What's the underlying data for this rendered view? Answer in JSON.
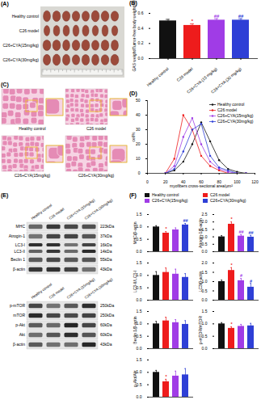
{
  "panel_A": {
    "label": "(A)",
    "rows": [
      "Healthy control",
      "C26 model",
      "C26+CYA(15mg/kg)",
      "C26+CYA(30mg/kg)"
    ]
  },
  "panel_C": {
    "label": "(C)",
    "images": [
      "Healthy control",
      "C26 model",
      "C26+CYA(15mg/kg)",
      "C26+CYA(30mg/kg)"
    ]
  },
  "panel_E": {
    "label": "(E)",
    "columns": [
      "Healthy control",
      "C26 model",
      "C26+CYA (15mg/kg)",
      "C26+CYA (30mg/kg)"
    ],
    "blots": [
      [
        {
          "protein": [
            "MHC"
          ],
          "size": [
            "223kDa"
          ]
        },
        {
          "protein": [
            "Atrogin-1"
          ],
          "size": [
            "37kDa"
          ]
        },
        {
          "protein": [
            "LC3-I",
            "LC3-II"
          ],
          "size": [
            "16kDa",
            "14kDa"
          ]
        },
        {
          "protein": [
            "Beclin 1"
          ],
          "size": [
            "55kDa"
          ]
        },
        {
          "protein": [
            "β-actin"
          ],
          "size": [
            "43kDa"
          ]
        }
      ],
      [
        {
          "protein": [
            "p-mTOR"
          ],
          "size": [
            "250kDa"
          ]
        },
        {
          "protein": [
            "mTOR"
          ],
          "size": [
            "250kDa"
          ]
        },
        {
          "protein": [
            "p-Akt"
          ],
          "size": [
            "60kDa"
          ]
        },
        {
          "protein": [
            "Akt"
          ],
          "size": [
            "60kDa"
          ]
        },
        {
          "protein": [
            "β-actin"
          ],
          "size": [
            "43kDa"
          ]
        }
      ]
    ]
  },
  "panel_F": {
    "label": "(F)",
    "legend": {
      "names": [
        "Healthy control",
        "C26 model",
        "C26+CYA(15mg/kg)",
        "C26+CYA(30mg/kg)"
      ],
      "colors": [
        "#111111",
        "#ee1c1c",
        "#a03ce6",
        "#2e3fd6"
      ]
    }
  },
  "chart_data": [
    {
      "type": "bar",
      "title": "(B)",
      "y_label": "GAS weight/Tumor-free body weight(%)",
      "categories": [
        "Healthy control",
        "C26 model",
        "C26+CYA (15 mg/kg)",
        "C26+CYA (30 mg/kg)"
      ],
      "values": [
        0.5,
        0.44,
        0.51,
        0.51
      ],
      "errors": [
        0.02,
        0.02,
        0.02,
        0.02
      ],
      "significance": [
        null,
        "*",
        "##",
        "##"
      ],
      "colors": [
        "#111111",
        "#ee1c1c",
        "#a03ce6",
        "#2e3fd6"
      ],
      "ylim": [
        0,
        0.6
      ],
      "yticks": [
        {
          "value": 0,
          "label": "0.0"
        },
        0.2,
        0.4,
        0.6
      ]
    },
    {
      "type": "line",
      "title": "(D)",
      "x_label": "myofibers cross-sectional area/μm²",
      "y_label": "cell%",
      "x": [
        20,
        30,
        40,
        50,
        60,
        70,
        80,
        90,
        100,
        110
      ],
      "series": [
        {
          "name": "Healthy control",
          "color": "#111111",
          "values": [
            0,
            2,
            8,
            20,
            35,
            22,
            9,
            3,
            1,
            0
          ]
        },
        {
          "name": "C26 model",
          "color": "#ee1c1c",
          "values": [
            0,
            10,
            40,
            30,
            12,
            5,
            2,
            0,
            0,
            0
          ]
        },
        {
          "name": "C26+CYA(15mg/kg)",
          "color": "#a03ce6",
          "values": [
            0,
            5,
            25,
            38,
            20,
            8,
            3,
            1,
            0,
            0
          ]
        },
        {
          "name": "C26+CYA(30mg/kg)",
          "color": "#2e3fd6",
          "values": [
            0,
            3,
            15,
            30,
            34,
            12,
            4,
            2,
            0,
            0
          ]
        }
      ],
      "marker": "circle",
      "legend": "top-right",
      "xlim": [
        0,
        120
      ],
      "xticks": [
        0,
        20,
        40,
        60,
        80,
        100,
        120
      ],
      "ylim": [
        0,
        50
      ],
      "yticks": [
        0,
        10,
        20,
        30,
        40,
        50
      ]
    },
    {
      "type": "bar",
      "y_label": "MHC/β-actin",
      "tick_labels": "y",
      "categories": [
        "Healthy control",
        "C26 model",
        "C26+CYA(15mg/kg)",
        "C26+CYA(30mg/kg)"
      ],
      "values": [
        1.0,
        0.75,
        0.88,
        1.08
      ],
      "errors": [
        0.05,
        0.06,
        0.08,
        0.06
      ],
      "significance": [
        null,
        "*",
        null,
        "##"
      ],
      "colors": [
        "#111111",
        "#ee1c1c",
        "#a03ce6",
        "#2e3fd6"
      ],
      "ylim": [
        0,
        1.5
      ],
      "yticks": [
        {
          "value": 0,
          "label": "0.0"
        },
        0.5,
        {
          "value": 1,
          "label": "1.0"
        },
        1.5
      ]
    },
    {
      "type": "bar",
      "y_label": "Atrogin-1/β-actin",
      "tick_labels": "y",
      "categories": [
        "Healthy control",
        "C26 model",
        "C26+CYA(15mg/kg)",
        "C26+CYA(30mg/kg)"
      ],
      "values": [
        1.0,
        1.85,
        1.05,
        0.98
      ],
      "errors": [
        0.08,
        0.15,
        0.1,
        0.12
      ],
      "significance": [
        null,
        "*",
        "##",
        "##"
      ],
      "colors": [
        "#111111",
        "#ee1c1c",
        "#a03ce6",
        "#2e3fd6"
      ],
      "ylim": [
        0,
        2.5
      ],
      "yticks": [
        {
          "value": 0,
          "label": "0.0"
        },
        0.5,
        {
          "value": 1,
          "label": "1.0"
        },
        1.5,
        {
          "value": 2,
          "label": "2.0"
        },
        2.5
      ]
    },
    {
      "type": "bar",
      "y_label": "LC3-II/LC3-I",
      "tick_labels": "y",
      "categories": [
        "Healthy control",
        "C26 model",
        "C26+CYA(15mg/kg)",
        "C26+CYA(30mg/kg)"
      ],
      "values": [
        1.0,
        1.12,
        1.05,
        0.92
      ],
      "errors": [
        0.15,
        0.18,
        0.2,
        0.15
      ],
      "colors": [
        "#111111",
        "#ee1c1c",
        "#a03ce6",
        "#2e3fd6"
      ],
      "ylim": [
        0,
        1.5
      ],
      "yticks": [
        {
          "value": 0,
          "label": "0.0"
        },
        0.5,
        {
          "value": 1,
          "label": "1.0"
        },
        1.5
      ]
    },
    {
      "type": "bar",
      "y_label": "LC3/β-actin",
      "tick_labels": "y",
      "categories": [
        "Healthy control",
        "C26 model",
        "C26+CYA(15mg/kg)",
        "C26+CYA(30mg/kg)"
      ],
      "values": [
        1.0,
        1.6,
        1.05,
        0.7
      ],
      "errors": [
        0.08,
        0.15,
        0.12,
        0.2
      ],
      "significance": [
        null,
        "*",
        "#",
        "#"
      ],
      "colors": [
        "#111111",
        "#ee1c1c",
        "#a03ce6",
        "#2e3fd6"
      ],
      "ylim": [
        0,
        2
      ],
      "yticks": [
        {
          "value": 0,
          "label": "0.0"
        },
        0.5,
        {
          "value": 1,
          "label": "1.0"
        },
        1.5,
        {
          "value": 2,
          "label": "2.0"
        }
      ]
    },
    {
      "type": "bar",
      "y_label": "Beclin 1/β-actin",
      "tick_labels": "y",
      "categories": [
        "Healthy control",
        "C26 model",
        "C26+CYA(15mg/kg)",
        "C26+CYA(30mg/kg)"
      ],
      "values": [
        1.0,
        1.12,
        1.05,
        0.98
      ],
      "errors": [
        0.1,
        0.15,
        0.12,
        0.15
      ],
      "colors": [
        "#111111",
        "#ee1c1c",
        "#a03ce6",
        "#2e3fd6"
      ],
      "ylim": [
        0,
        1.5
      ],
      "yticks": [
        {
          "value": 0,
          "label": "0.0"
        },
        0.5,
        {
          "value": 1,
          "label": "1.0"
        },
        1.5
      ]
    },
    {
      "type": "bar",
      "y_label": "p-mTOR/mTOR",
      "tick_labels": "y",
      "categories": [
        "Healthy control",
        "C26 model",
        "C26+CYA(15mg/kg)",
        "C26+CYA(30mg/kg)"
      ],
      "values": [
        1.0,
        0.82,
        0.9,
        0.92
      ],
      "errors": [
        0.05,
        0.06,
        0.08,
        0.1
      ],
      "significance": [
        null,
        "*",
        null,
        null
      ],
      "colors": [
        "#111111",
        "#ee1c1c",
        "#a03ce6",
        "#2e3fd6"
      ],
      "ylim": [
        0,
        1.5
      ],
      "yticks": [
        {
          "value": 0,
          "label": "0.0"
        },
        0.5,
        {
          "value": 1,
          "label": "1.0"
        },
        1.5
      ]
    },
    {
      "type": "bar",
      "y_label": "p-Akt/Akt",
      "tick_labels": "y",
      "categories": [
        "Healthy control",
        "C26 model",
        "C26+CYA(15mg/kg)",
        "C26+CYA(30mg/kg)"
      ],
      "values": [
        1.0,
        0.62,
        0.85,
        0.9
      ],
      "errors": [
        0.08,
        0.1,
        0.2,
        0.25
      ],
      "significance": [
        null,
        "*",
        null,
        null
      ],
      "colors": [
        "#111111",
        "#ee1c1c",
        "#a03ce6",
        "#2e3fd6"
      ],
      "ylim": [
        0,
        1.5
      ],
      "yticks": [
        {
          "value": 0,
          "label": "0.0"
        },
        0.5,
        {
          "value": 1,
          "label": "1.0"
        },
        1.5
      ]
    }
  ]
}
